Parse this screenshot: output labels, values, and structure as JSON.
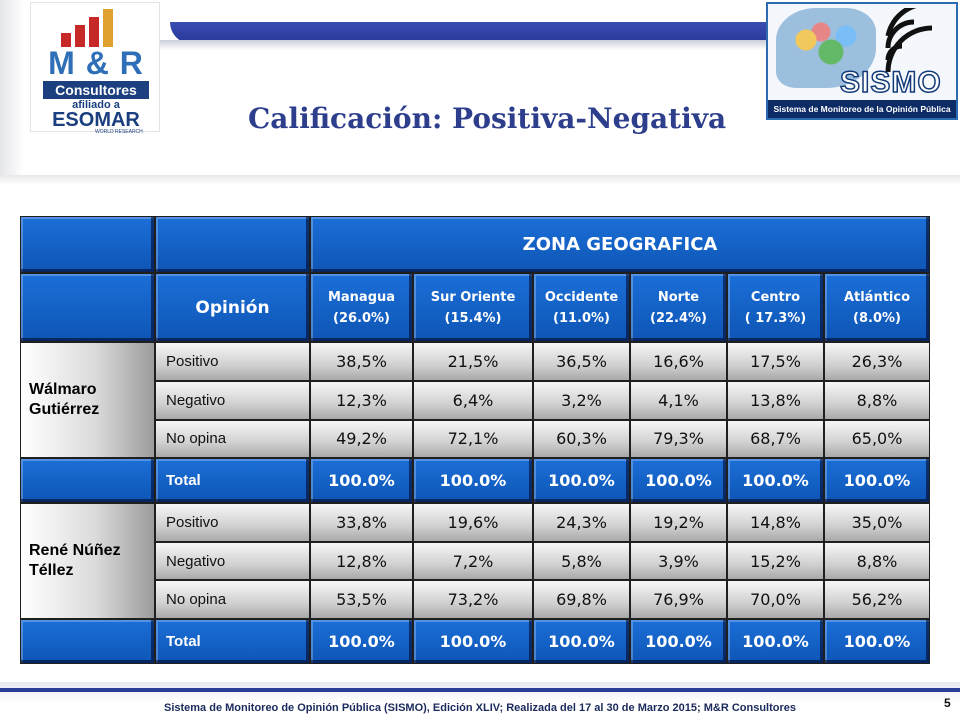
{
  "header": {
    "title": "Calificación: Positiva-Negativa"
  },
  "logos": {
    "mr": {
      "mr_text": "M & R",
      "consultores": "Consultores",
      "afiliado": "afiliado a",
      "esomar": "ESOMAR",
      "world": "WORLD RESEARCH"
    },
    "sismo": {
      "name": "SISMO",
      "subtitle": "Sistema de Monitoreo de la Opinión Pública"
    }
  },
  "table": {
    "zone_header": "ZONA GEOGRAFICA",
    "opinion_header": "Opinión",
    "columns": [
      {
        "name": "Managua",
        "share": "(26.0%)"
      },
      {
        "name": "Sur Oriente",
        "share": "(15.4%)"
      },
      {
        "name": "Occidente",
        "share": "(11.0%)"
      },
      {
        "name": "Norte",
        "share": "(22.4%)"
      },
      {
        "name": "Centro",
        "share": "( 17.3%)"
      },
      {
        "name": "Atlántico",
        "share": "(8.0%)"
      }
    ],
    "candidates": [
      {
        "name_line1": "Wálmaro",
        "name_line2": "Gutiérrez",
        "rows": [
          {
            "label": "Positivo",
            "values": [
              "38,5%",
              "21,5%",
              "36,5%",
              "16,6%",
              "17,5%",
              "26,3%"
            ]
          },
          {
            "label": "Negativo",
            "values": [
              "12,3%",
              "6,4%",
              "3,2%",
              "4,1%",
              "13,8%",
              "8,8%"
            ]
          },
          {
            "label": "No opina",
            "values": [
              "49,2%",
              "72,1%",
              "60,3%",
              "79,3%",
              "68,7%",
              "65,0%"
            ]
          }
        ],
        "total": {
          "label": "Total",
          "values": [
            "100.0%",
            "100.0%",
            "100.0%",
            "100.0%",
            "100.0%",
            "100.0%"
          ]
        }
      },
      {
        "name_line1": "René Núñez",
        "name_line2": "Téllez",
        "rows": [
          {
            "label": "Positivo",
            "values": [
              "33,8%",
              "19,6%",
              "24,3%",
              "19,2%",
              "14,8%",
              "35,0%"
            ]
          },
          {
            "label": "Negativo",
            "values": [
              "12,8%",
              "7,2%",
              "5,8%",
              "3,9%",
              "15,2%",
              "8,8%"
            ]
          },
          {
            "label": "No opina",
            "values": [
              "53,5%",
              "73,2%",
              "69,8%",
              "76,9%",
              "70,0%",
              "56,2%"
            ]
          }
        ],
        "total": {
          "label": "Total",
          "values": [
            "100.0%",
            "100.0%",
            "100.0%",
            "100.0%",
            "100.0%",
            "100.0%"
          ]
        }
      }
    ]
  },
  "footer": {
    "text": "Sistema de Monitoreo de Opinión Pública (SISMO), Edición XLIV; Realizada del 17 al 30 de Marzo 2015; M&R Consultores",
    "page_number": "5"
  },
  "colors": {
    "table_blue": "#1366c9",
    "title_blue": "#2d3e8c",
    "band_blue": "#2a3d96"
  }
}
